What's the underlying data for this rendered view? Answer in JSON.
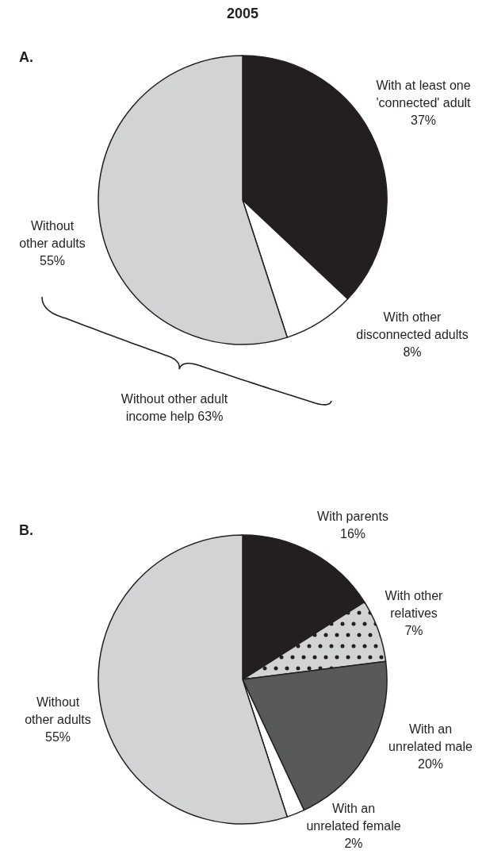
{
  "chart_data": [
    {
      "type": "pie",
      "title": "2005",
      "subtitle": "A.",
      "categories": [
        "With at least one\n'connected' adult",
        "With other\ndisconnected adults",
        "Without\nother adults"
      ],
      "values": [
        37,
        8,
        55
      ],
      "value_labels": [
        "37%",
        "8%",
        "55%"
      ],
      "colors": [
        "#231f20",
        "#ffffff",
        "#d1d3d4"
      ],
      "annotations": [
        "Without other adult\nincome help 63%"
      ]
    },
    {
      "type": "pie",
      "title": "B.",
      "categories": [
        "With parents",
        "With other\nrelatives",
        "With an\nunrelated male",
        "With an\nunrelated female",
        "Without\nother adults"
      ],
      "values": [
        16,
        7,
        20,
        2,
        55
      ],
      "value_labels": [
        "16%",
        "7%",
        "20%",
        "2%",
        "55%"
      ],
      "colors": [
        "#231f20",
        "#d1d3d4",
        "#58595b",
        "#ffffff",
        "#d1d3d4"
      ]
    }
  ]
}
